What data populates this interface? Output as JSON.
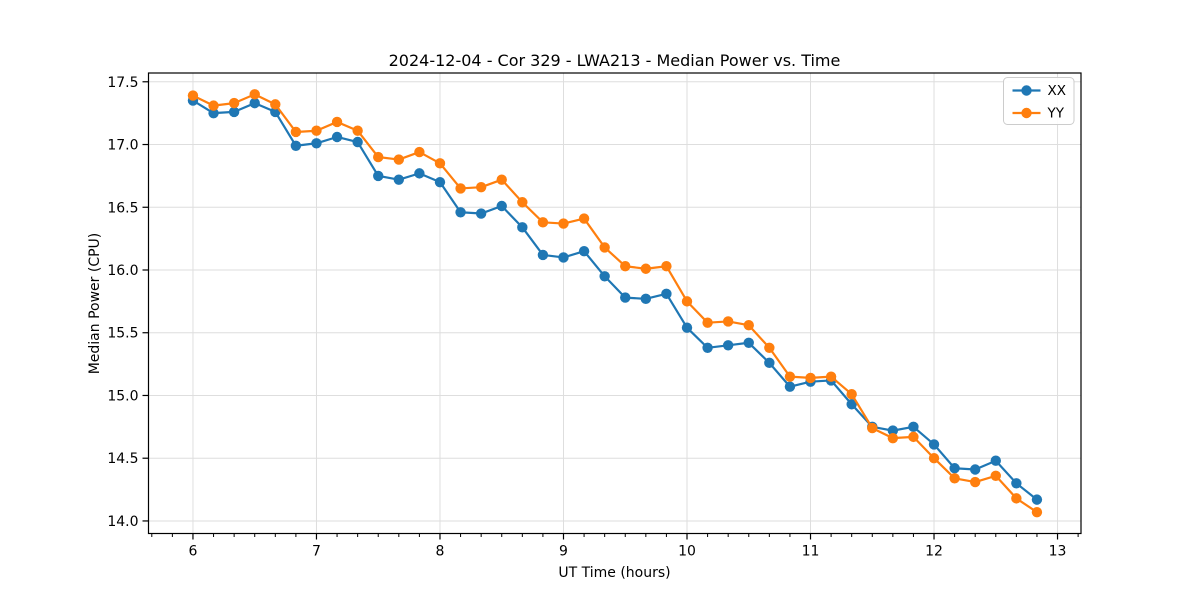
{
  "figure": {
    "title": "2024-12-04 - Cor 329 - LWA213 - Median Power vs. Time",
    "xlabel": "UT Time (hours)",
    "ylabel": "Median Power (CPU)"
  },
  "legend": {
    "position": "upper-right",
    "entries": [
      {
        "label": "XX",
        "color": "#1f77b4"
      },
      {
        "label": "YY",
        "color": "#ff7f0e"
      }
    ]
  },
  "chart_data": {
    "type": "line",
    "title": "2024-12-04 - Cor 329 - LWA213 - Median Power vs. Time",
    "xlabel": "UT Time (hours)",
    "ylabel": "Median Power (CPU)",
    "marker": "circle",
    "grid": true,
    "legend_position": "upper-right",
    "xlim": [
      5.64,
      13.19
    ],
    "ylim": [
      13.9,
      17.57
    ],
    "xticks": [
      6,
      7,
      8,
      9,
      10,
      11,
      12,
      13
    ],
    "yticks": [
      14.0,
      14.5,
      15.0,
      15.5,
      16.0,
      16.5,
      17.0,
      17.5
    ],
    "x_minor_tick_step": 0.166667,
    "x": [
      6.0,
      6.1667,
      6.3333,
      6.5,
      6.6667,
      6.8333,
      7.0,
      7.1667,
      7.3333,
      7.5,
      7.6667,
      7.8333,
      8.0,
      8.1667,
      8.3333,
      8.5,
      8.6667,
      8.8333,
      9.0,
      9.1667,
      9.3333,
      9.5,
      9.6667,
      9.8333,
      10.0,
      10.1667,
      10.3333,
      10.5,
      10.6667,
      10.8333,
      11.0,
      11.1667,
      11.3333,
      11.5,
      11.6667,
      11.8333,
      12.0,
      12.1667,
      12.3333,
      12.5,
      12.6667,
      12.8333
    ],
    "series": [
      {
        "name": "XX",
        "color": "#1f77b4",
        "values": [
          17.35,
          17.25,
          17.26,
          17.33,
          17.26,
          16.99,
          17.01,
          17.06,
          17.02,
          16.75,
          16.72,
          16.77,
          16.7,
          16.46,
          16.45,
          16.51,
          16.34,
          16.12,
          16.1,
          16.15,
          15.95,
          15.78,
          15.77,
          15.81,
          15.54,
          15.38,
          15.4,
          15.42,
          15.26,
          15.07,
          15.11,
          15.12,
          14.93,
          14.75,
          14.72,
          14.75,
          14.61,
          14.42,
          14.41,
          14.48,
          14.3,
          14.17
        ]
      },
      {
        "name": "YY",
        "color": "#ff7f0e",
        "values": [
          17.39,
          17.31,
          17.33,
          17.4,
          17.32,
          17.1,
          17.11,
          17.18,
          17.11,
          16.9,
          16.88,
          16.94,
          16.85,
          16.65,
          16.66,
          16.72,
          16.54,
          16.38,
          16.37,
          16.41,
          16.18,
          16.03,
          16.01,
          16.03,
          15.75,
          15.58,
          15.59,
          15.56,
          15.38,
          15.15,
          15.14,
          15.15,
          15.01,
          14.74,
          14.66,
          14.67,
          14.5,
          14.34,
          14.31,
          14.36,
          14.18,
          14.07
        ]
      }
    ]
  }
}
